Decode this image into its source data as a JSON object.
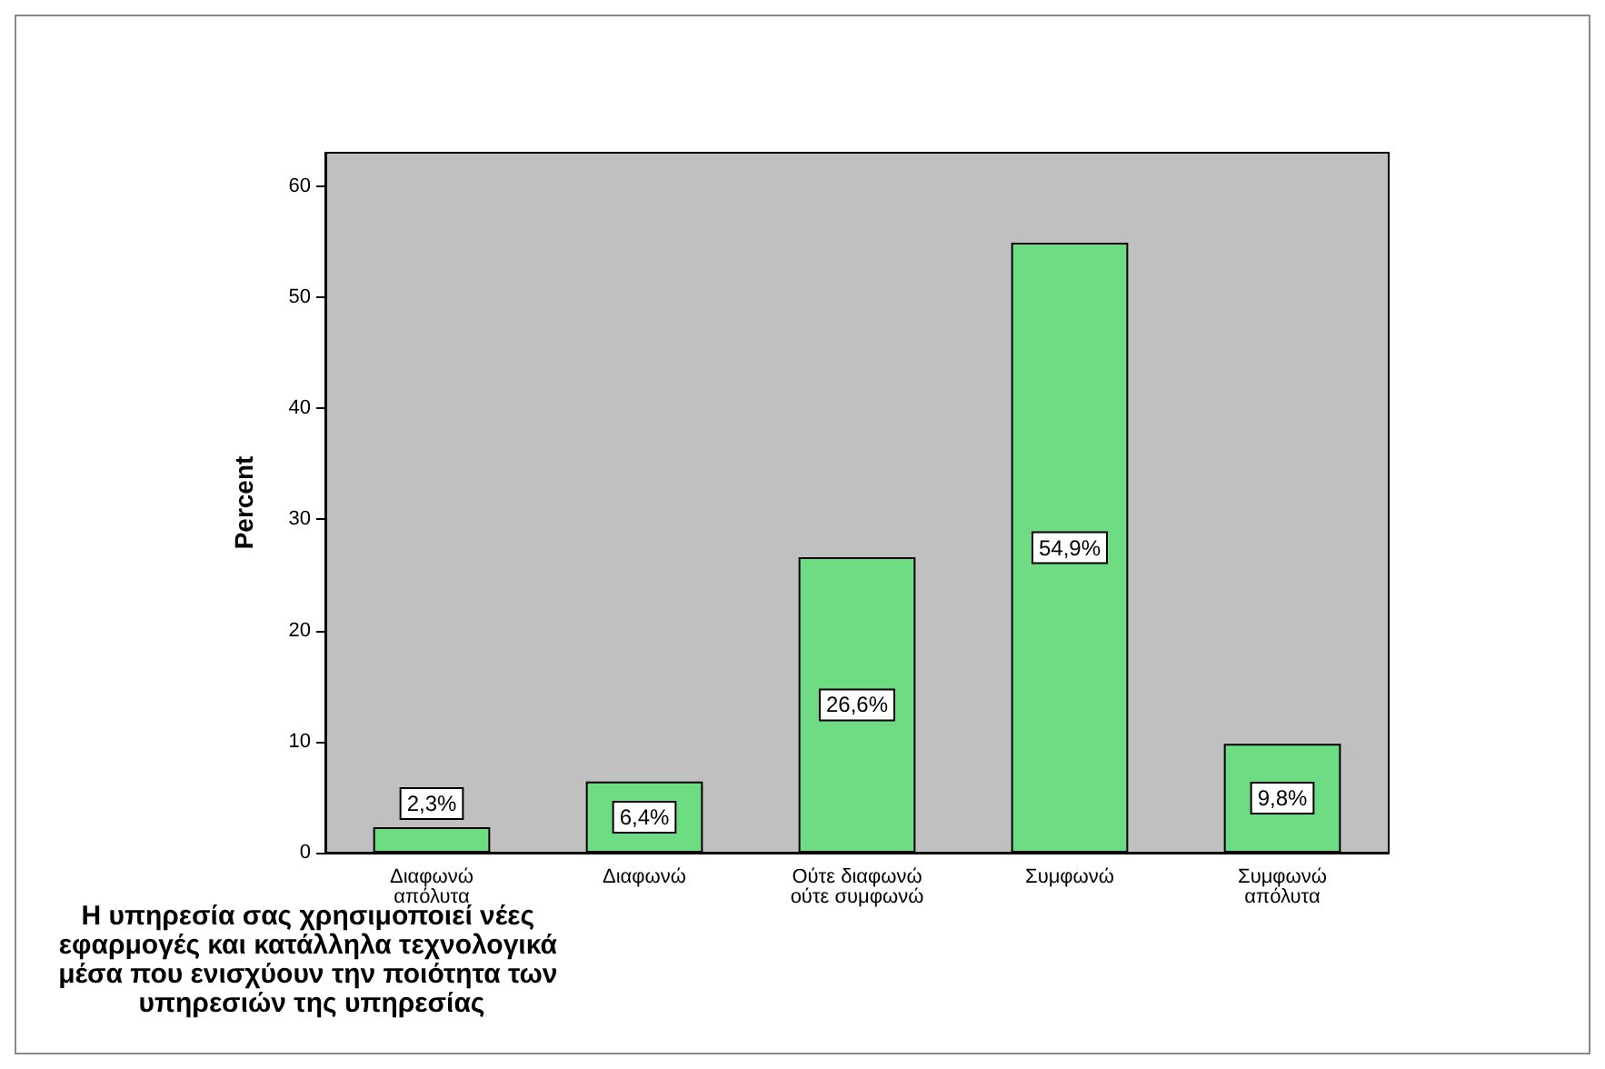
{
  "chart_data": {
    "type": "bar",
    "xlabel": "Η υπηρεσία σας χρησιμοποιεί νέες εφαρμογές και κατάλληλα τεχνολογικά μέσα που ενισχύουν την ποιότητα των υπηρεσιών της υπηρεσίας",
    "ylabel": "Percent",
    "categories": [
      "Διαφωνώ\nαπόλυτα",
      "Διαφωνώ",
      "Ούτε διαφωνώ\nούτε συμφωνώ",
      "Συμφωνώ",
      "Συμφωνώ\nαπόλυτα"
    ],
    "values": [
      2.3,
      6.4,
      26.6,
      54.9,
      9.8
    ],
    "value_labels": [
      "2,3%",
      "6,4%",
      "26,6%",
      "54,9%",
      "9,8%"
    ],
    "color": "#6edc82",
    "ylim": [
      0,
      63
    ],
    "yticks": [
      0,
      10,
      20,
      30,
      40,
      50,
      60
    ],
    "grid": false
  }
}
